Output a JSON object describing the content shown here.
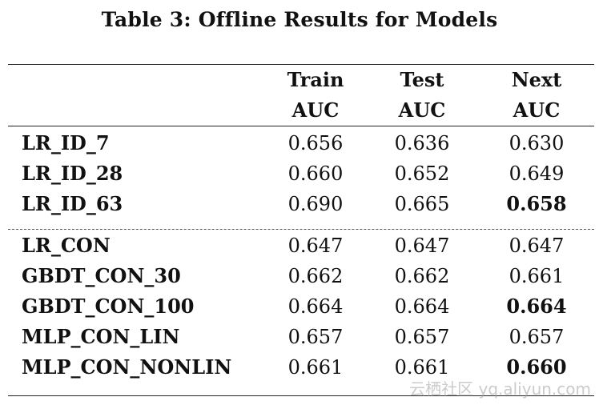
{
  "caption": "Table 3: Offline Results for Models",
  "header": {
    "train": [
      "Train",
      "AUC"
    ],
    "test": [
      "Test",
      "AUC"
    ],
    "next": [
      "Next",
      "AUC"
    ]
  },
  "group1": [
    {
      "model": "LR_ID_7",
      "train": "0.656",
      "test": "0.636",
      "next": "0.630",
      "next_bold": false
    },
    {
      "model": "LR_ID_28",
      "train": "0.660",
      "test": "0.652",
      "next": "0.649",
      "next_bold": false
    },
    {
      "model": "LR_ID_63",
      "train": "0.690",
      "test": "0.665",
      "next": "0.658",
      "next_bold": true
    }
  ],
  "group2": [
    {
      "model": "LR_CON",
      "train": "0.647",
      "test": "0.647",
      "next": "0.647",
      "next_bold": false
    },
    {
      "model": "GBDT_CON_30",
      "train": "0.662",
      "test": "0.662",
      "next": "0.661",
      "next_bold": false
    },
    {
      "model": "GBDT_CON_100",
      "train": "0.664",
      "test": "0.664",
      "next": "0.664",
      "next_bold": true
    },
    {
      "model": "MLP_CON_LIN",
      "train": "0.657",
      "test": "0.657",
      "next": "0.657",
      "next_bold": false
    },
    {
      "model": "MLP_CON_NONLIN",
      "train": "0.661",
      "test": "0.661",
      "next": "0.660",
      "next_bold": true
    }
  ],
  "watermark": "云栖社区 yq.aliyun.com"
}
